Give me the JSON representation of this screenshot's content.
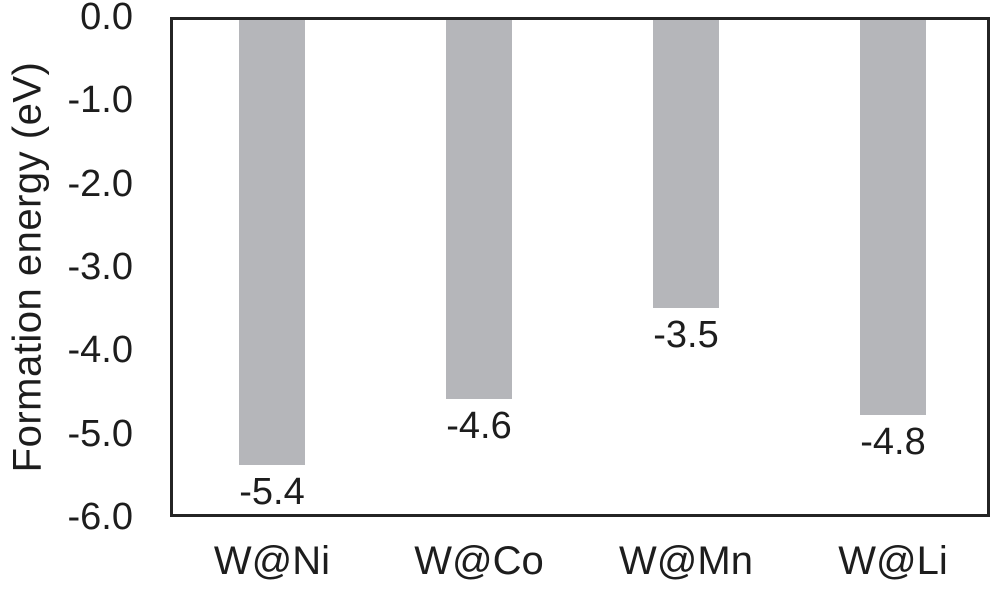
{
  "chart_data": {
    "type": "bar",
    "categories": [
      "W@Ni",
      "W@Co",
      "W@Mn",
      "W@Li"
    ],
    "values": [
      -5.4,
      -4.6,
      -3.5,
      -4.8
    ],
    "value_labels": [
      "-5.4",
      "-4.6",
      "-3.5",
      "-4.8"
    ],
    "title": "",
    "xlabel": "",
    "ylabel": "Formation energy (eV)",
    "ylim": [
      -6.0,
      0.0
    ],
    "yticks": [
      "0.0",
      "-1.0",
      "-2.0",
      "-3.0",
      "-4.0",
      "-5.0",
      "-6.0"
    ],
    "grid": false,
    "legend_position": "none",
    "bar_color": "#b5b6ba",
    "axis_color": "#242424",
    "text_color": "#1d1d1d"
  }
}
